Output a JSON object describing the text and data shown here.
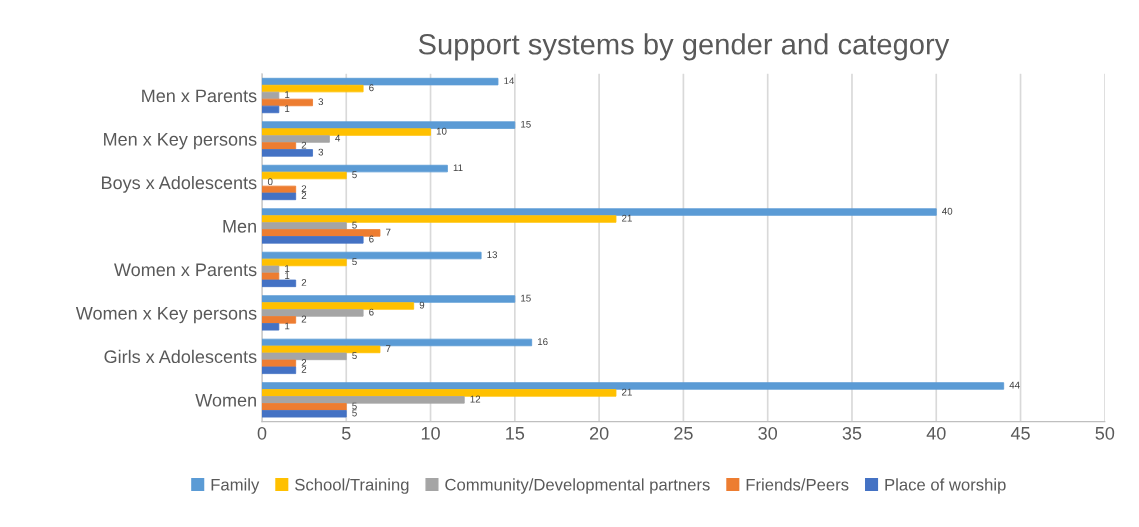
{
  "chart_data": {
    "type": "bar",
    "orientation": "horizontal",
    "title": "Support systems by gender and category",
    "categories": [
      "Men x Parents",
      "Men x Key persons",
      "Boys x Adolescents",
      "Men",
      "Women x Parents",
      "Women x Key persons",
      "Girls x Adolescents",
      "Women"
    ],
    "series": [
      {
        "name": "Family",
        "color": "#5b9bd5",
        "values": [
          14,
          15,
          11,
          40,
          13,
          15,
          16,
          44
        ]
      },
      {
        "name": "School/Training",
        "color": "#ffc000",
        "values": [
          6,
          10,
          5,
          21,
          5,
          9,
          7,
          21
        ]
      },
      {
        "name": "Community/Developmental partners",
        "color": "#a5a5a5",
        "values": [
          1,
          4,
          0,
          5,
          1,
          6,
          5,
          12
        ]
      },
      {
        "name": "Friends/Peers",
        "color": "#ed7d31",
        "values": [
          3,
          2,
          2,
          7,
          1,
          2,
          2,
          5
        ]
      },
      {
        "name": "Place of worship",
        "color": "#4472c4",
        "values": [
          1,
          3,
          2,
          6,
          2,
          1,
          2,
          5
        ]
      }
    ],
    "xlim": [
      0,
      50
    ],
    "xticks": [
      0,
      5,
      10,
      15,
      20,
      25,
      30,
      35,
      40,
      45,
      50
    ],
    "grid": "x",
    "legend": "bottom",
    "data_labels": true
  }
}
